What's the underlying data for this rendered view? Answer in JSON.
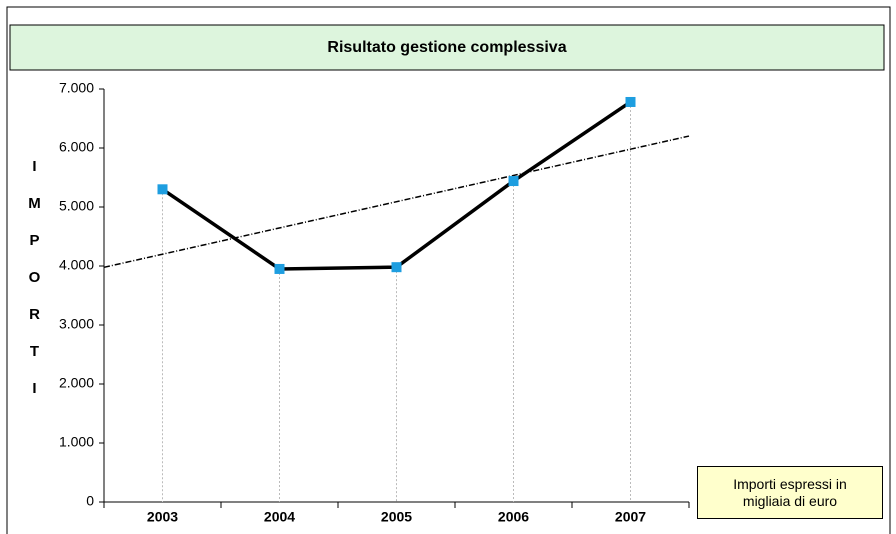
{
  "chart_data": {
    "type": "line",
    "title": "Risultato gestione complessiva",
    "y_label": "IMPORTI",
    "note": [
      "Importi espressi in",
      "migliaia di euro"
    ],
    "categories": [
      "2003",
      "2004",
      "2005",
      "2006",
      "2007"
    ],
    "series": [
      {
        "color": "#000000",
        "marker_color": "#1e9ee0",
        "values": [
          5300,
          3950,
          3980,
          5440,
          6780
        ]
      }
    ],
    "trendline": true,
    "drop_lines": true,
    "ylim": [
      0,
      7000
    ],
    "yticks": [
      0,
      {
        "value": 1000,
        "label": "1.000"
      },
      {
        "value": 2000,
        "label": "2.000"
      },
      {
        "value": 3000,
        "label": "3.000"
      },
      {
        "value": 4000,
        "label": "4.000"
      },
      {
        "value": 5000,
        "label": "5.000"
      },
      {
        "value": 6000,
        "label": "6.000"
      },
      {
        "value": 7000,
        "label": "7.000"
      }
    ]
  }
}
